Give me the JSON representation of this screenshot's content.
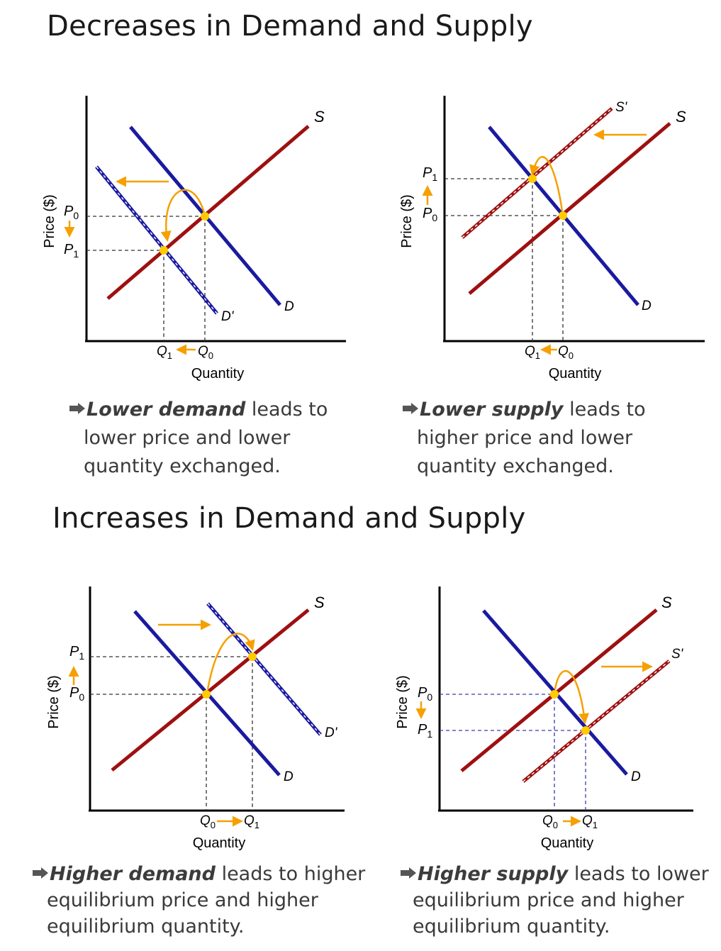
{
  "headings": {
    "decreases": "Decreases in Demand and Supply",
    "increases": "Increases in Demand and Supply"
  },
  "colors": {
    "demand": "#1a1aa0",
    "supply": "#9e1010",
    "arrow": "#f5a000",
    "point": "#ffcc00"
  },
  "panels": {
    "lower_demand": {
      "ylabel": "Price ($)",
      "xlabel": "Quantity",
      "p_top": "P",
      "p_top_sub": "0",
      "p_bottom": "P",
      "p_bottom_sub": "1",
      "q_left": "Q",
      "q_left_sub": "1",
      "q_right": "Q",
      "q_right_sub": "0",
      "supply_label": "S",
      "demand_label": "D",
      "shifted_label": "D'",
      "caption_bold": "Lower demand",
      "caption_rest": " leads to",
      "caption_line2": "lower price and lower",
      "caption_line3": "quantity exchanged."
    },
    "lower_supply": {
      "ylabel": "Price ($)",
      "xlabel": "Quantity",
      "p_top": "P",
      "p_top_sub": "1",
      "p_bottom": "P",
      "p_bottom_sub": "0",
      "q_left": "Q",
      "q_left_sub": "1",
      "q_right": "Q",
      "q_right_sub": "0",
      "supply_label": "S",
      "demand_label": "D",
      "shifted_label": "S'",
      "caption_bold": "Lower supply",
      "caption_rest": " leads to",
      "caption_line2": "higher price and lower",
      "caption_line3": "quantity exchanged."
    },
    "higher_demand": {
      "ylabel": "Price ($)",
      "xlabel": "Quantity",
      "p_top": "P",
      "p_top_sub": "1",
      "p_bottom": "P",
      "p_bottom_sub": "0",
      "q_left": "Q",
      "q_left_sub": "0",
      "q_right": "Q",
      "q_right_sub": "1",
      "supply_label": "S",
      "demand_label": "D",
      "shifted_label": "D'",
      "caption_bold": "Higher demand",
      "caption_rest": " leads to higher",
      "caption_line2": "equilibrium price and higher",
      "caption_line3": "equilibrium quantity."
    },
    "higher_supply": {
      "ylabel": "Price ($)",
      "xlabel": "Quantity",
      "p_top": "P",
      "p_top_sub": "0",
      "p_bottom": "P",
      "p_bottom_sub": "1",
      "q_left": "Q",
      "q_left_sub": "0",
      "q_right": "Q",
      "q_right_sub": "1",
      "supply_label": "S",
      "demand_label": "D",
      "shifted_label": "S'",
      "caption_bold": "Higher supply",
      "caption_rest": " leads to lower",
      "caption_line2": "equilibrium price and higher",
      "caption_line3": "equilibrium quantity."
    }
  }
}
